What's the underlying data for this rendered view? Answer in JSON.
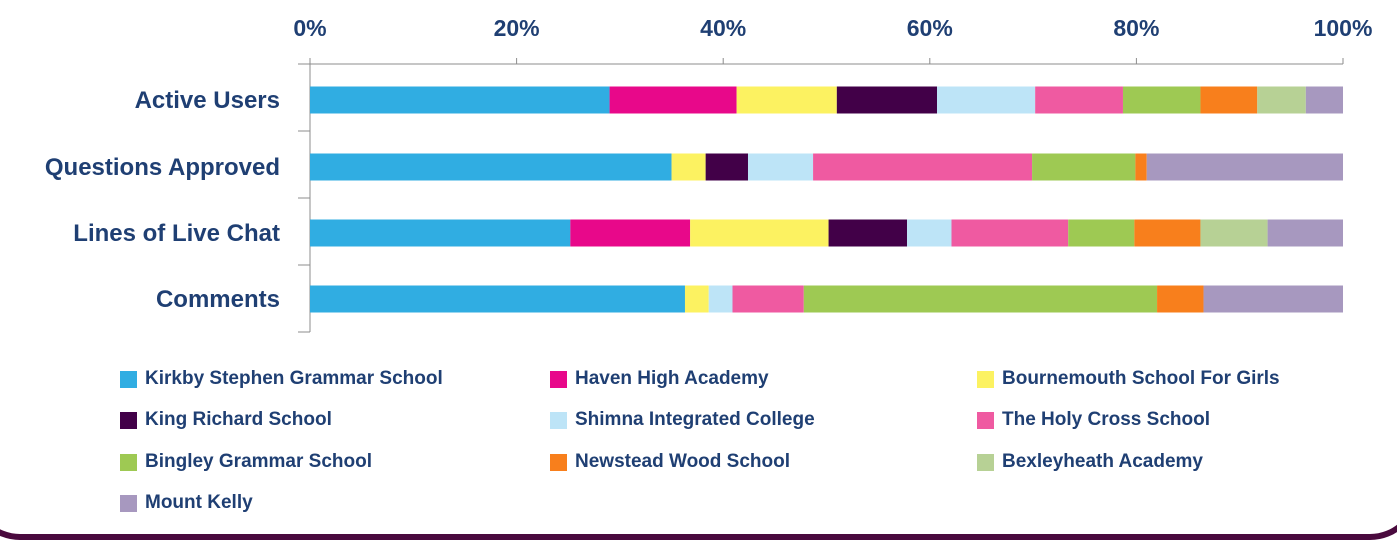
{
  "chart_data": {
    "type": "bar",
    "orientation": "horizontal",
    "stacked": "percent",
    "x_axis_position": "top",
    "xlim": [
      0,
      100
    ],
    "x_ticks": [
      "0%",
      "20%",
      "40%",
      "60%",
      "80%",
      "100%"
    ],
    "grid": false,
    "legend_position": "bottom",
    "categories": [
      "Active Users",
      "Questions Approved",
      "Lines of Live Chat",
      "Comments"
    ],
    "series": [
      {
        "name": "Kirkby Stephen Grammar School",
        "color": "#30ade2",
        "values": [
          29.0,
          35.0,
          25.2,
          36.3
        ]
      },
      {
        "name": "Haven High Academy",
        "color": "#e8088a",
        "values": [
          12.3,
          0,
          11.6,
          0
        ]
      },
      {
        "name": "Bournemouth School For Girls",
        "color": "#fcf261",
        "values": [
          9.7,
          3.3,
          13.4,
          2.3
        ]
      },
      {
        "name": "King Richard School",
        "color": "#420048",
        "values": [
          9.7,
          4.1,
          7.6,
          0
        ]
      },
      {
        "name": "Shimna Integrated College",
        "color": "#bde4f7",
        "values": [
          9.5,
          6.3,
          4.3,
          2.3
        ]
      },
      {
        "name": "The Holy Cross School",
        "color": "#ef5aa1",
        "values": [
          8.5,
          21.2,
          11.3,
          6.9
        ]
      },
      {
        "name": "Bingley Grammar School",
        "color": "#9ec953",
        "values": [
          7.5,
          10.0,
          6.4,
          34.2
        ]
      },
      {
        "name": "Newstead Wood School",
        "color": "#f87f1c",
        "values": [
          5.5,
          1.1,
          6.4,
          4.5
        ]
      },
      {
        "name": "Bexleyheath Academy",
        "color": "#b7d195",
        "values": [
          4.7,
          0,
          6.5,
          0
        ]
      },
      {
        "name": "Mount Kelly",
        "color": "#a798bf",
        "values": [
          3.6,
          19.0,
          7.3,
          13.5
        ]
      }
    ]
  }
}
